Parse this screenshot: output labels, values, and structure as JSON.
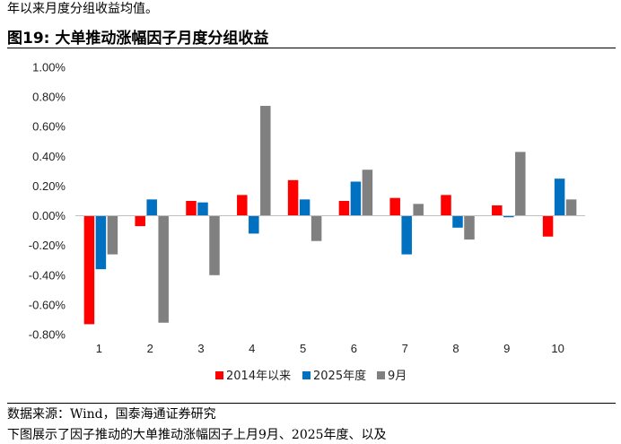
{
  "intro_text": "年以来月度分组收益均值。",
  "figure_title": "图19:  大单推动涨幅因子月度分组收益",
  "source_text": "数据来源：Wind，国泰海通证券研究",
  "cut_text": "下图展示了因子推动的大单推动涨幅因子上月9月、2025年度、以及",
  "colors": {
    "series_2014": "#ff0000",
    "series_2025": "#0070c0",
    "series_sep": "#808080"
  },
  "chart_data": {
    "type": "bar",
    "categories": [
      "1",
      "2",
      "3",
      "4",
      "5",
      "6",
      "7",
      "8",
      "9",
      "10"
    ],
    "series": [
      {
        "name": "2014年以来",
        "values": [
          -0.73,
          -0.07,
          0.1,
          0.14,
          0.24,
          0.1,
          0.12,
          0.14,
          0.07,
          -0.14
        ]
      },
      {
        "name": "2025年度",
        "values": [
          -0.36,
          0.11,
          0.09,
          -0.12,
          0.11,
          0.23,
          -0.26,
          -0.08,
          -0.01,
          0.25
        ]
      },
      {
        "name": "9月",
        "values": [
          -0.26,
          -0.72,
          -0.4,
          0.74,
          -0.17,
          0.31,
          0.08,
          -0.16,
          0.43,
          0.11
        ]
      }
    ],
    "ylim": [
      -0.008,
      0.01
    ],
    "yticks": [
      "1.00%",
      "0.80%",
      "0.60%",
      "0.40%",
      "0.20%",
      "0.00%",
      "-0.20%",
      "-0.40%",
      "-0.60%",
      "-0.80%"
    ],
    "ytick_values": [
      1.0,
      0.8,
      0.6,
      0.4,
      0.2,
      0.0,
      -0.2,
      -0.4,
      -0.6,
      -0.8
    ],
    "legend_position": "bottom",
    "grid": false
  }
}
